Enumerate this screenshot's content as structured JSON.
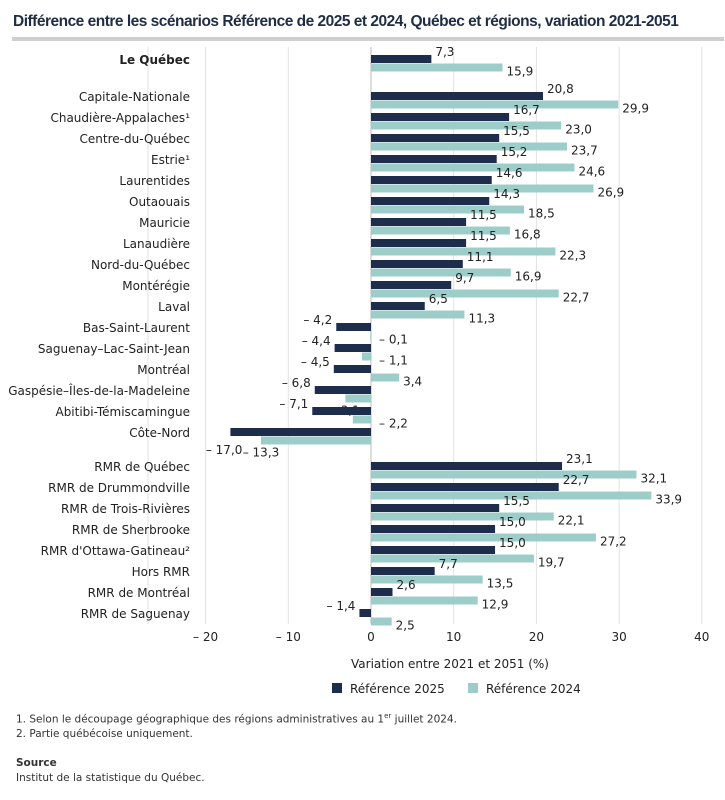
{
  "chart_data": {
    "type": "bar",
    "orientation": "horizontal",
    "title": "Différence entre les scénarios Référence de 2025 et 2024, Québec et régions, variation 2021-2051",
    "xlabel": "Variation entre 2021 et 2051 (%)",
    "xlim": [
      -20,
      40
    ],
    "xticks": [
      "– 20",
      "– 10",
      "0",
      "10",
      "20",
      "30",
      "40"
    ],
    "xtick_values": [
      -20,
      -10,
      0,
      10,
      20,
      30,
      40
    ],
    "grid": true,
    "legend": "bottom",
    "categories": [
      "Le Québec",
      "Capitale-Nationale",
      "Chaudière-Appalaches¹",
      "Centre-du-Québec",
      "Estrie¹",
      "Laurentides",
      "Outaouais",
      "Mauricie",
      "Lanaudière",
      "Nord-du-Québec",
      "Montérégie",
      "Laval",
      "Bas-Saint-Laurent",
      "Saguenay–Lac-Saint-Jean",
      "Montréal",
      "Gaspésie–Îles-de-la-Madeleine",
      "Abitibi-Témiscamingue",
      "Côte-Nord",
      "RMR de Québec",
      "RMR de Drummondville",
      "RMR de Trois-Rivières",
      "RMR de Sherbrooke",
      "RMR d'Ottawa-Gatineau²",
      "Hors RMR",
      "RMR de Montréal",
      "RMR de Saguenay"
    ],
    "series": [
      {
        "name": "Référence 2025",
        "color": "#1f2d4d",
        "values": [
          7.3,
          20.8,
          16.7,
          15.5,
          15.2,
          14.6,
          14.3,
          11.5,
          11.5,
          11.1,
          9.7,
          6.5,
          -4.2,
          -4.4,
          -4.5,
          -6.8,
          -7.1,
          -17.0,
          23.1,
          22.7,
          15.5,
          15.0,
          15.0,
          7.7,
          2.6,
          -1.4
        ]
      },
      {
        "name": "Référence 2024",
        "color": "#9dcdc9",
        "values": [
          15.9,
          29.9,
          23.0,
          23.7,
          24.6,
          26.9,
          18.5,
          16.8,
          22.3,
          16.9,
          22.7,
          11.3,
          -0.1,
          -1.1,
          3.4,
          -3.1,
          -2.2,
          -13.3,
          32.1,
          33.9,
          22.1,
          27.2,
          19.7,
          13.5,
          12.9,
          2.5
        ]
      }
    ]
  },
  "notes": {
    "n1_pre": "1. Selon le découpage géographique des régions administratives au 1",
    "n1_sup": "er",
    "n1_post": " juillet 2024.",
    "n2": "2. Partie québécoise uniquement.",
    "source_title": "Source",
    "source": "Institut de la statistique du Québec."
  }
}
